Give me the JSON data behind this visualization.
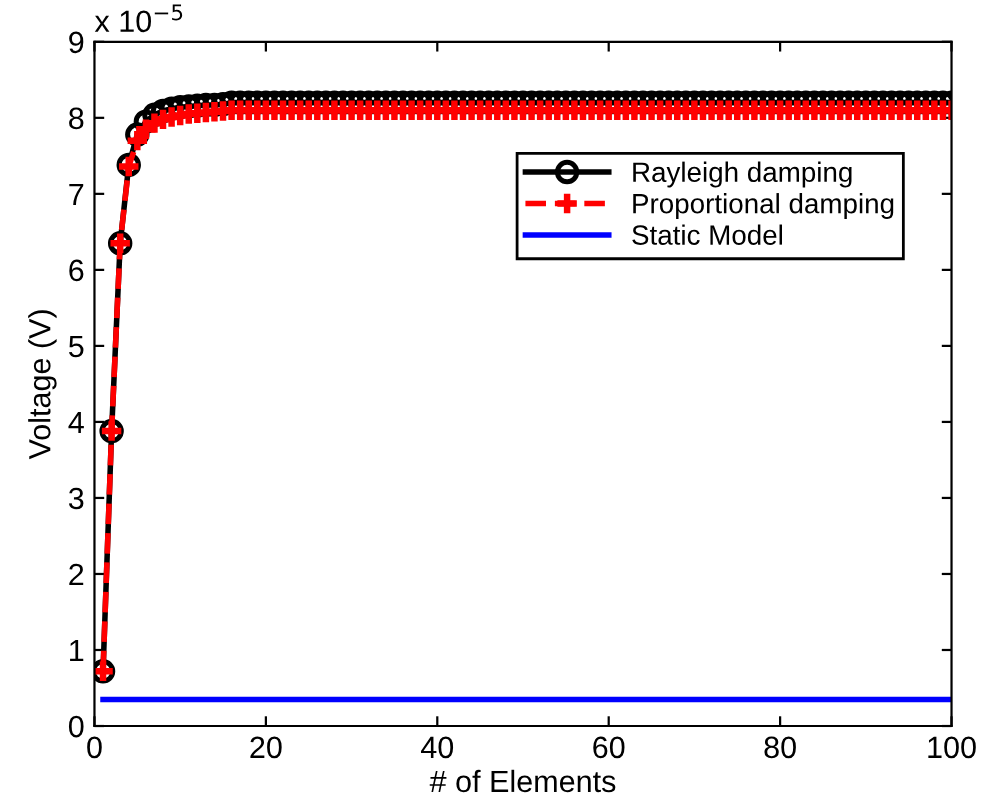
{
  "chart_data": {
    "type": "line",
    "xlabel": "# of Elements",
    "ylabel": "Voltage (V)",
    "annotations": [
      "x 10$^{−5}$"
    ],
    "xlim": [
      0,
      100
    ],
    "xticks": [
      0,
      20,
      40,
      60,
      80,
      100
    ],
    "ylim": [
      0,
      9
    ],
    "yticks": [
      0,
      1,
      2,
      3,
      4,
      5,
      6,
      7,
      8,
      9
    ],
    "grid": false,
    "legend": "right",
    "x": [
      1,
      2,
      3,
      4,
      5,
      6,
      7,
      8,
      9,
      10,
      11,
      12,
      13,
      14,
      15,
      16,
      17,
      18,
      19,
      20,
      21,
      22,
      23,
      24,
      25,
      26,
      27,
      28,
      29,
      30,
      31,
      32,
      33,
      34,
      35,
      36,
      37,
      38,
      39,
      40,
      41,
      42,
      43,
      44,
      45,
      46,
      47,
      48,
      49,
      50,
      51,
      52,
      53,
      54,
      55,
      56,
      57,
      58,
      59,
      60,
      61,
      62,
      63,
      64,
      65,
      66,
      67,
      68,
      69,
      70,
      71,
      72,
      73,
      74,
      75,
      76,
      77,
      78,
      79,
      80,
      81,
      82,
      83,
      84,
      85,
      86,
      87,
      88,
      89,
      90,
      91,
      92,
      93,
      94,
      95,
      96,
      97,
      98,
      99,
      100
    ],
    "series": [
      {
        "name": "Rayleigh damping",
        "color": "#000000",
        "marker": "circle",
        "line_style": "solid",
        "values": [
          0.72,
          3.88,
          6.35,
          7.38,
          7.78,
          7.95,
          8.04,
          8.09,
          8.12,
          8.14,
          8.15,
          8.16,
          8.17,
          8.17,
          8.18,
          8.2,
          8.2,
          8.2,
          8.2,
          8.2,
          8.2,
          8.2,
          8.2,
          8.2,
          8.2,
          8.2,
          8.2,
          8.2,
          8.2,
          8.2,
          8.2,
          8.2,
          8.2,
          8.2,
          8.2,
          8.2,
          8.2,
          8.2,
          8.2,
          8.2,
          8.2,
          8.2,
          8.2,
          8.2,
          8.2,
          8.2,
          8.2,
          8.2,
          8.2,
          8.2,
          8.2,
          8.2,
          8.2,
          8.2,
          8.2,
          8.2,
          8.2,
          8.2,
          8.2,
          8.2,
          8.2,
          8.2,
          8.2,
          8.2,
          8.2,
          8.2,
          8.2,
          8.2,
          8.2,
          8.2,
          8.2,
          8.2,
          8.2,
          8.2,
          8.2,
          8.2,
          8.2,
          8.2,
          8.2,
          8.2,
          8.2,
          8.2,
          8.2,
          8.2,
          8.2,
          8.2,
          8.2,
          8.2,
          8.2,
          8.2,
          8.2,
          8.2,
          8.2,
          8.2,
          8.2,
          8.2,
          8.2,
          8.2,
          8.2,
          8.2
        ]
      },
      {
        "name": "Proportional damping",
        "color": "#ff0000",
        "marker": "cross",
        "line_style": "dashed",
        "values": [
          0.72,
          3.88,
          6.35,
          7.36,
          7.7,
          7.85,
          7.93,
          7.98,
          8.01,
          8.03,
          8.05,
          8.06,
          8.07,
          8.08,
          8.09,
          8.1,
          8.1,
          8.1,
          8.1,
          8.1,
          8.1,
          8.1,
          8.1,
          8.1,
          8.1,
          8.1,
          8.1,
          8.1,
          8.1,
          8.1,
          8.1,
          8.1,
          8.1,
          8.1,
          8.1,
          8.1,
          8.1,
          8.1,
          8.1,
          8.1,
          8.1,
          8.1,
          8.1,
          8.1,
          8.1,
          8.1,
          8.1,
          8.1,
          8.1,
          8.1,
          8.1,
          8.1,
          8.1,
          8.1,
          8.1,
          8.1,
          8.1,
          8.1,
          8.1,
          8.1,
          8.1,
          8.1,
          8.1,
          8.1,
          8.1,
          8.1,
          8.1,
          8.1,
          8.1,
          8.1,
          8.1,
          8.1,
          8.1,
          8.1,
          8.1,
          8.1,
          8.1,
          8.1,
          8.1,
          8.1,
          8.1,
          8.1,
          8.1,
          8.1,
          8.1,
          8.1,
          8.1,
          8.1,
          8.1,
          8.1,
          8.1,
          8.1,
          8.1,
          8.1,
          8.1,
          8.1,
          8.1,
          8.1,
          8.1,
          8.1
        ]
      },
      {
        "name": "Static Model",
        "color": "#0000ff",
        "marker": "none",
        "line_style": "solid",
        "x": [
          1,
          100
        ],
        "values": [
          0.35,
          0.35
        ]
      }
    ]
  }
}
